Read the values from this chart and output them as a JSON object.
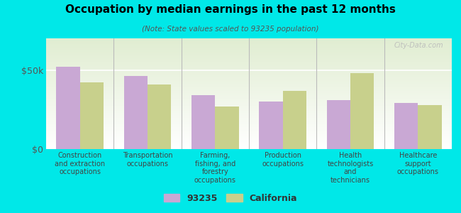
{
  "title": "Occupation by median earnings in the past 12 months",
  "subtitle": "(Note: State values scaled to 93235 population)",
  "categories": [
    "Construction\nand extraction\noccupations",
    "Transportation\noccupations",
    "Farming,\nfishing, and\nforestry\noccupations",
    "Production\noccupations",
    "Health\ntechnologists\nand\ntechnicians",
    "Healthcare\nsupport\noccupations"
  ],
  "values_93235": [
    52000,
    46000,
    34000,
    30000,
    31000,
    29000
  ],
  "values_california": [
    42000,
    41000,
    27000,
    37000,
    48000,
    28000
  ],
  "color_93235": "#c9a8d4",
  "color_california": "#c8d08c",
  "bar_width": 0.35,
  "ylim": [
    0,
    70000
  ],
  "yticks": [
    0,
    50000
  ],
  "ytick_labels": [
    "$0",
    "$50k"
  ],
  "legend_93235": "93235",
  "legend_california": "California",
  "background_color": "#00e8e8",
  "plot_bg_color": "#eef3dc",
  "watermark": "City-Data.com"
}
